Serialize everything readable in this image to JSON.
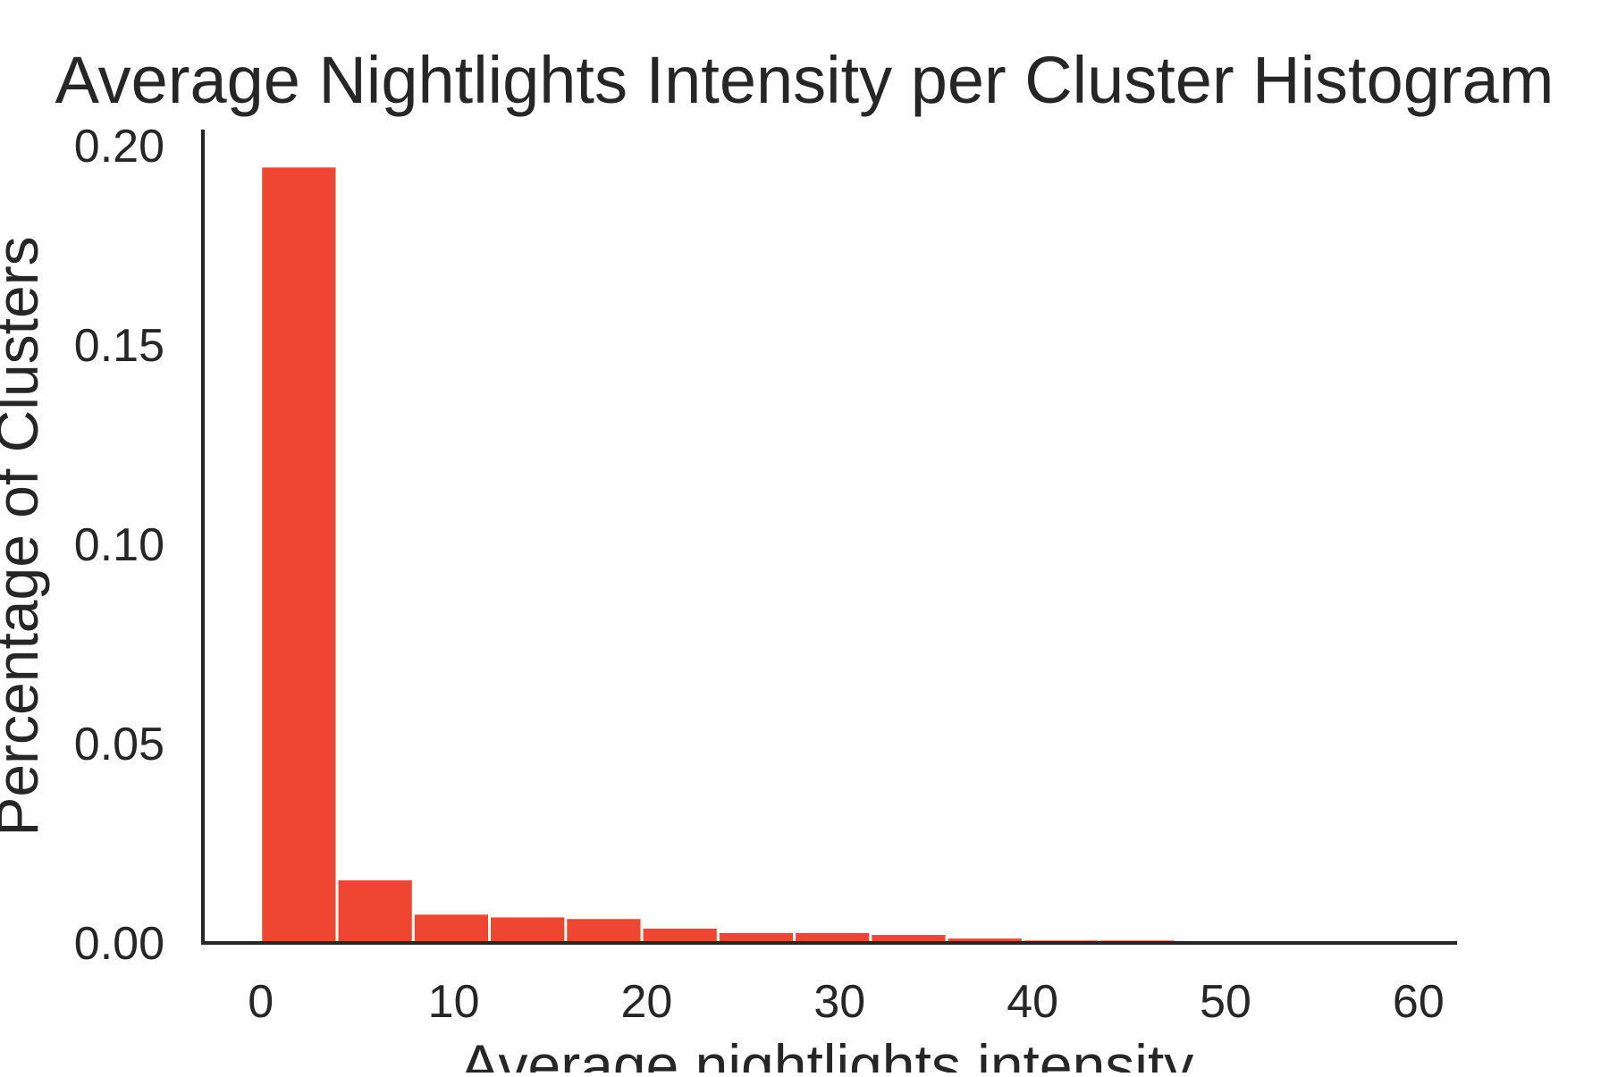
{
  "chart_data": {
    "type": "bar",
    "title": "Average Nightlights Intensity per Cluster Histogram",
    "xlabel": "Average nightlights intensity",
    "ylabel": "Percentage of Clusters",
    "xlim": [
      -3,
      62
    ],
    "ylim": [
      0,
      0.204
    ],
    "x_ticks": [
      0,
      10,
      20,
      30,
      40,
      50,
      60
    ],
    "y_ticks": [
      0.0,
      0.05,
      0.1,
      0.15,
      0.2
    ],
    "y_tick_labels": [
      "0.00",
      "0.05",
      "0.10",
      "0.15",
      "0.20"
    ],
    "grid": false,
    "bar_color": "#ee4631",
    "bins": [
      {
        "x0": 0.0,
        "x1": 3.95,
        "value": 0.1945
      },
      {
        "x0": 3.95,
        "x1": 7.9,
        "value": 0.0157
      },
      {
        "x0": 7.9,
        "x1": 11.85,
        "value": 0.0071
      },
      {
        "x0": 11.85,
        "x1": 15.8,
        "value": 0.0064
      },
      {
        "x0": 15.8,
        "x1": 19.75,
        "value": 0.006
      },
      {
        "x0": 19.75,
        "x1": 23.7,
        "value": 0.0036
      },
      {
        "x0": 23.7,
        "x1": 27.65,
        "value": 0.0025
      },
      {
        "x0": 27.65,
        "x1": 31.6,
        "value": 0.0025
      },
      {
        "x0": 31.6,
        "x1": 35.55,
        "value": 0.002
      },
      {
        "x0": 35.55,
        "x1": 39.5,
        "value": 0.0011
      },
      {
        "x0": 39.5,
        "x1": 43.45,
        "value": 0.0006
      },
      {
        "x0": 43.45,
        "x1": 47.4,
        "value": 0.0006
      },
      {
        "x0": 47.4,
        "x1": 51.35,
        "value": 0.0001
      },
      {
        "x0": 51.35,
        "x1": 55.3,
        "value": 0.0001
      },
      {
        "x0": 55.3,
        "x1": 59.25,
        "value": 0.0
      }
    ]
  }
}
